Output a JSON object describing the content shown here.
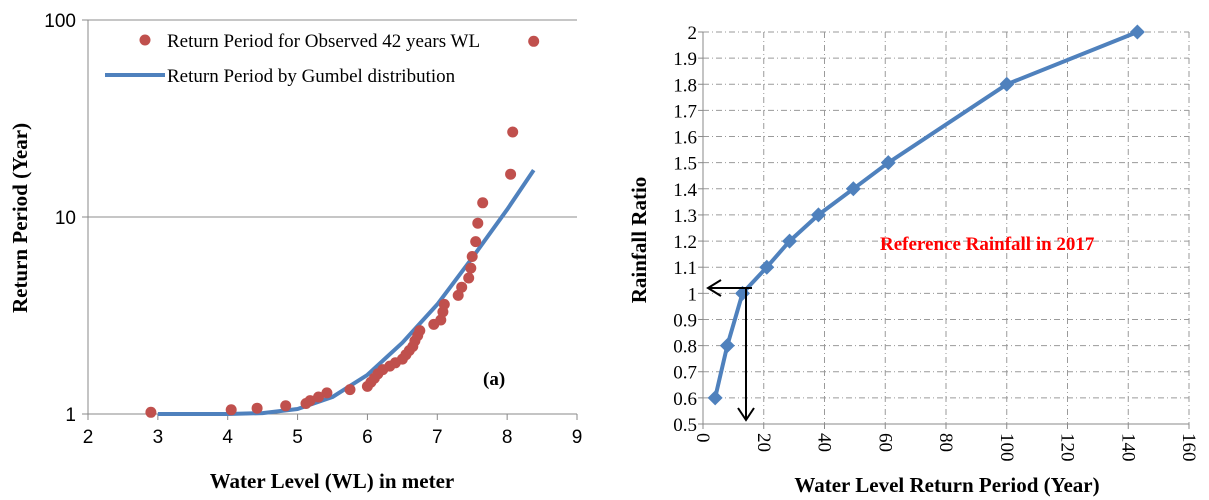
{
  "chart_data": [
    {
      "type": "scatter",
      "scale": "log-y",
      "xlabel": "Water Level (WL) in meter",
      "ylabel": "Return Period (Year)",
      "xlim": [
        2,
        9
      ],
      "ylim": [
        1,
        100
      ],
      "x_ticks": [
        "2",
        "3",
        "4",
        "5",
        "6",
        "7",
        "8",
        "9"
      ],
      "y_ticks": [
        "1",
        "10",
        "100"
      ],
      "annotation": "(a)",
      "grid": "horizontal",
      "legend_position": "top-right",
      "series": [
        {
          "name": "Return Period for Observed 42 years WL",
          "kind": "scatter",
          "color": "#c0504d",
          "points": [
            [
              2.9,
              1.02
            ],
            [
              4.05,
              1.05
            ],
            [
              4.42,
              1.07
            ],
            [
              4.83,
              1.1
            ],
            [
              5.12,
              1.13
            ],
            [
              5.18,
              1.17
            ],
            [
              5.3,
              1.22
            ],
            [
              5.42,
              1.28
            ],
            [
              5.75,
              1.33
            ],
            [
              6.0,
              1.38
            ],
            [
              6.05,
              1.45
            ],
            [
              6.1,
              1.52
            ],
            [
              6.15,
              1.6
            ],
            [
              6.22,
              1.68
            ],
            [
              6.32,
              1.75
            ],
            [
              6.4,
              1.82
            ],
            [
              6.5,
              1.9
            ],
            [
              6.55,
              2.0
            ],
            [
              6.6,
              2.1
            ],
            [
              6.65,
              2.2
            ],
            [
              6.68,
              2.35
            ],
            [
              6.72,
              2.5
            ],
            [
              6.75,
              2.65
            ],
            [
              6.95,
              2.85
            ],
            [
              7.05,
              3.0
            ],
            [
              7.08,
              3.3
            ],
            [
              7.1,
              3.6
            ],
            [
              7.3,
              4.0
            ],
            [
              7.35,
              4.4
            ],
            [
              7.45,
              4.9
            ],
            [
              7.48,
              5.5
            ],
            [
              7.5,
              6.3
            ],
            [
              7.55,
              7.5
            ],
            [
              7.58,
              9.3
            ],
            [
              7.65,
              11.8
            ],
            [
              8.05,
              16.5
            ],
            [
              8.08,
              27
            ],
            [
              8.38,
              78
            ]
          ]
        },
        {
          "name": "Return Period by Gumbel distribution",
          "kind": "line",
          "color": "#4f81bd",
          "points": [
            [
              3.0,
              1.0
            ],
            [
              4.0,
              1.0
            ],
            [
              4.5,
              1.01
            ],
            [
              5.0,
              1.06
            ],
            [
              5.5,
              1.22
            ],
            [
              6.0,
              1.58
            ],
            [
              6.5,
              2.3
            ],
            [
              7.0,
              3.6
            ],
            [
              7.5,
              6.2
            ],
            [
              8.0,
              10.9
            ],
            [
              8.38,
              17.3
            ]
          ]
        }
      ]
    },
    {
      "type": "line",
      "xlabel": "Water Level Return Period (Year)",
      "ylabel": "Rainfall Ratio",
      "xlim": [
        0,
        160
      ],
      "ylim": [
        0.5,
        2
      ],
      "x_ticks": [
        "0",
        "20",
        "40",
        "60",
        "80",
        "100",
        "120",
        "140",
        "160"
      ],
      "y_ticks": [
        "0.5",
        "0.6",
        "0.7",
        "0.8",
        "0.9",
        "1",
        "1.1",
        "1.2",
        "1.3",
        "1.4",
        "1.5",
        "1.6",
        "1.7",
        "1.8",
        "1.9",
        "2"
      ],
      "grid": "dashed",
      "annotation": "Reference Rainfall in 2017",
      "annotation_color": "#ff0000",
      "series": [
        {
          "color": "#4f81bd",
          "points": [
            [
              4,
              0.6
            ],
            [
              8,
              0.8
            ],
            [
              13,
              1.0
            ],
            [
              21,
              1.1
            ],
            [
              28.5,
              1.2
            ],
            [
              38,
              1.3
            ],
            [
              49.5,
              1.4
            ],
            [
              61,
              1.5
            ],
            [
              100,
              1.8
            ],
            [
              143,
              2.0
            ]
          ]
        }
      ]
    }
  ]
}
